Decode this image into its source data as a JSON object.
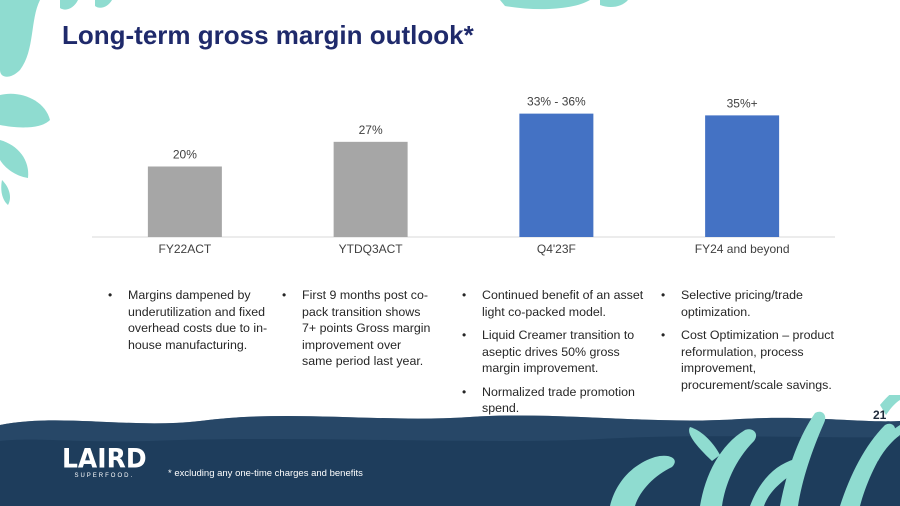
{
  "slide": {
    "title": "Long-term gross margin outlook*",
    "page_number": "21",
    "footnote": "* excluding any one-time charges and benefits",
    "logo": {
      "name": "LAIRD",
      "sub": "SUPERFOOD."
    }
  },
  "colors": {
    "title": "#1f2a6b",
    "bar_actual": "#a6a6a6",
    "bar_forecast": "#4472c4",
    "teal_leaf": "#8fdcd0",
    "navy_band": "#1e3d5c"
  },
  "chart_data": {
    "type": "bar",
    "title": "",
    "xlabel": "",
    "ylabel": "",
    "categories": [
      "FY22ACT",
      "YTDQ3ACT",
      "Q4'23F",
      "FY24 and beyond"
    ],
    "values": [
      20,
      27,
      35,
      34.5
    ],
    "data_labels": [
      "20%",
      "27%",
      "33% - 36%",
      "35%+"
    ],
    "bar_colors": [
      "#a6a6a6",
      "#a6a6a6",
      "#4472c4",
      "#4472c4"
    ],
    "ylim": [
      0,
      40
    ],
    "grid": false,
    "legend": "none"
  },
  "columns": [
    {
      "bullets": [
        "Margins dampened by underutilization and fixed overhead costs due to in-house manufacturing."
      ]
    },
    {
      "bullets": [
        "First 9 months post co-pack transition shows 7+ points Gross margin improvement over same period last year."
      ]
    },
    {
      "bullets": [
        "Continued benefit of an asset light co-packed model.",
        "Liquid Creamer transition to aseptic drives 50% gross margin improvement.",
        "Normalized trade promotion spend."
      ]
    },
    {
      "bullets": [
        "Selective pricing/trade optimization.",
        "Cost Optimization – product reformulation, process improvement, procurement/scale savings."
      ]
    }
  ]
}
